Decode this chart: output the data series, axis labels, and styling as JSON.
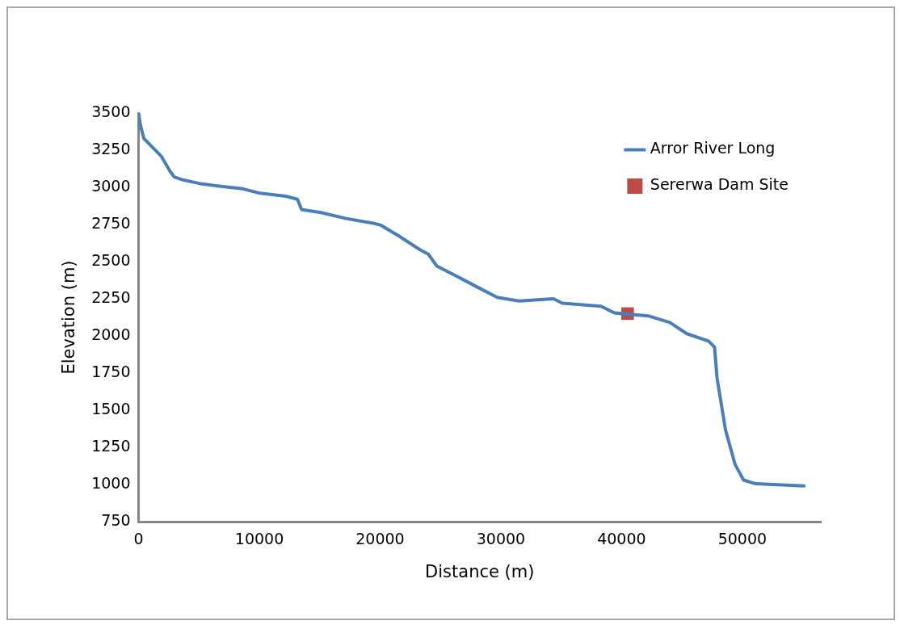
{
  "chart_data": {
    "type": "line",
    "xlabel": "Distance (m)",
    "ylabel": "Elevation (m)",
    "xlim": [
      0,
      56500
    ],
    "xticks": [
      0,
      10000,
      20000,
      30000,
      40000,
      50000
    ],
    "ylim": [
      750,
      3500
    ],
    "yticks": [
      750,
      1000,
      1250,
      1500,
      1750,
      2000,
      2250,
      2500,
      2750,
      3000,
      3250,
      3500
    ],
    "grid": false,
    "legend": "top right",
    "series": [
      {
        "name": "Arror River Long",
        "color": "#4a7ebb",
        "marker": "none",
        "x": [
          0,
          150,
          430,
          1150,
          1870,
          2590,
          2950,
          3670,
          5100,
          6500,
          8640,
          10070,
          12200,
          13150,
          13500,
          15100,
          17200,
          19350,
          20070,
          21500,
          23300,
          24000,
          24700,
          26500,
          27900,
          29700,
          31500,
          34360,
          35100,
          38300,
          39400,
          42200,
          44000,
          45400,
          47200,
          47700,
          47900,
          48600,
          49400,
          50100,
          51100,
          55100
        ],
        "values": [
          3500,
          3420,
          3330,
          3270,
          3210,
          3110,
          3070,
          3050,
          3025,
          3010,
          2990,
          2960,
          2940,
          2920,
          2850,
          2830,
          2790,
          2760,
          2745,
          2675,
          2580,
          2550,
          2470,
          2395,
          2335,
          2260,
          2235,
          2250,
          2220,
          2200,
          2155,
          2135,
          2090,
          2015,
          1965,
          1925,
          1720,
          1370,
          1135,
          1030,
          1005,
          990
        ]
      },
      {
        "name": "Sererwa Dam Site",
        "color": "#be4b48",
        "type": "scatter",
        "marker": "square",
        "x": [
          40500
        ],
        "values": [
          2150
        ]
      }
    ]
  }
}
